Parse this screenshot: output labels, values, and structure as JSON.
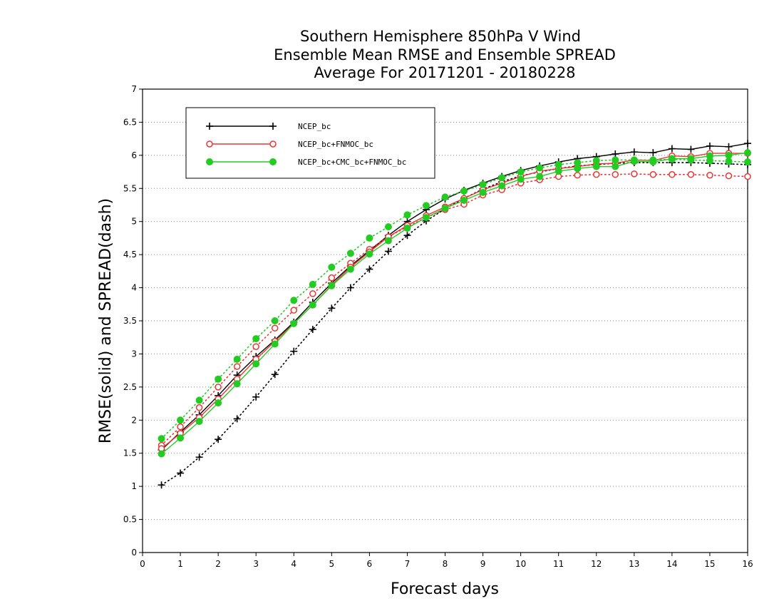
{
  "chart_data": {
    "type": "line",
    "title": [
      "Southern Hemisphere 850hPa V Wind",
      "Ensemble Mean RMSE and Ensemble SPREAD",
      "Average For 20171201 - 20180228"
    ],
    "xlabel": "Forecast days",
    "ylabel": "RMSE(solid) and SPREAD(dash)",
    "xlim": [
      0,
      16
    ],
    "ylim": [
      0,
      7
    ],
    "xticks": [
      0,
      1,
      2,
      3,
      4,
      5,
      6,
      7,
      8,
      9,
      10,
      11,
      12,
      13,
      14,
      15,
      16
    ],
    "xtick_labels": [
      "0",
      "1",
      "2",
      "3",
      "4",
      "5",
      "6",
      "7",
      "8",
      "9",
      "10",
      "11",
      "12",
      "13",
      "14",
      "15",
      "16"
    ],
    "yticks": [
      0,
      0.5,
      1,
      1.5,
      2,
      2.5,
      3,
      3.5,
      4,
      4.5,
      5,
      5.5,
      6,
      6.5,
      7
    ],
    "ytick_labels": [
      "0",
      "0.5",
      "1",
      "1.5",
      "2",
      "2.5",
      "3",
      "3.5",
      "4",
      "4.5",
      "5",
      "5.5",
      "6",
      "6.5",
      "7"
    ],
    "grid": "horizontal dotted",
    "legend_position": "top-left",
    "x": [
      0.5,
      1,
      1.5,
      2,
      2.5,
      3,
      3.5,
      4,
      4.5,
      5,
      5.5,
      6,
      6.5,
      7,
      7.5,
      8,
      8.5,
      9,
      9.5,
      10,
      10.5,
      11,
      11.5,
      12,
      12.5,
      13,
      13.5,
      14,
      14.5,
      15,
      15.5,
      16
    ],
    "series": [
      {
        "name": "NCEP_bc",
        "color": "#000000",
        "marker": "plus",
        "rmse": [
          1.55,
          1.82,
          2.08,
          2.37,
          2.68,
          2.96,
          3.21,
          3.48,
          3.78,
          4.07,
          4.33,
          4.56,
          4.79,
          5.0,
          5.18,
          5.34,
          5.47,
          5.58,
          5.68,
          5.77,
          5.84,
          5.9,
          5.95,
          5.98,
          6.02,
          6.05,
          6.04,
          6.1,
          6.09,
          6.14,
          6.13,
          6.18
        ],
        "spread": [
          1.02,
          1.2,
          1.44,
          1.71,
          2.02,
          2.35,
          2.69,
          3.04,
          3.37,
          3.69,
          4.0,
          4.28,
          4.55,
          4.79,
          5.01,
          5.19,
          5.35,
          5.49,
          5.6,
          5.69,
          5.75,
          5.8,
          5.84,
          5.86,
          5.88,
          5.89,
          5.89,
          5.89,
          5.89,
          5.88,
          5.87,
          5.86
        ]
      },
      {
        "name": "NCEP_bc+FNMOC_bc",
        "color": "#ee3333",
        "marker": "open-circle",
        "rmse": [
          1.57,
          1.8,
          2.04,
          2.32,
          2.62,
          2.92,
          3.19,
          3.46,
          3.74,
          4.04,
          4.31,
          4.54,
          4.77,
          4.94,
          5.09,
          5.22,
          5.35,
          5.48,
          5.58,
          5.68,
          5.76,
          5.8,
          5.83,
          5.87,
          5.88,
          5.93,
          5.92,
          5.99,
          5.98,
          6.03,
          6.03,
          6.03
        ],
        "spread": [
          1.62,
          1.9,
          2.19,
          2.5,
          2.81,
          3.11,
          3.39,
          3.66,
          3.91,
          4.15,
          4.37,
          4.58,
          4.77,
          4.92,
          5.06,
          5.18,
          5.26,
          5.4,
          5.48,
          5.58,
          5.63,
          5.68,
          5.7,
          5.71,
          5.71,
          5.72,
          5.71,
          5.71,
          5.71,
          5.7,
          5.69,
          5.68
        ]
      },
      {
        "name": "NCEP_bc+CMC_bc+FNMOC_bc",
        "color": "#22cc22",
        "marker": "filled-circle",
        "rmse": [
          1.49,
          1.73,
          1.98,
          2.26,
          2.55,
          2.85,
          3.15,
          3.46,
          3.74,
          4.03,
          4.28,
          4.51,
          4.71,
          4.9,
          5.06,
          5.2,
          5.32,
          5.44,
          5.54,
          5.64,
          5.68,
          5.76,
          5.8,
          5.83,
          5.83,
          5.91,
          5.9,
          5.95,
          5.95,
          5.99,
          6.0,
          6.04
        ],
        "spread": [
          1.72,
          2.0,
          2.3,
          2.62,
          2.92,
          3.23,
          3.5,
          3.81,
          4.05,
          4.31,
          4.52,
          4.75,
          4.92,
          5.1,
          5.24,
          5.37,
          5.46,
          5.56,
          5.66,
          5.75,
          5.81,
          5.86,
          5.89,
          5.92,
          5.93,
          5.93,
          5.93,
          5.94,
          5.93,
          5.92,
          5.91,
          5.9
        ]
      }
    ]
  }
}
